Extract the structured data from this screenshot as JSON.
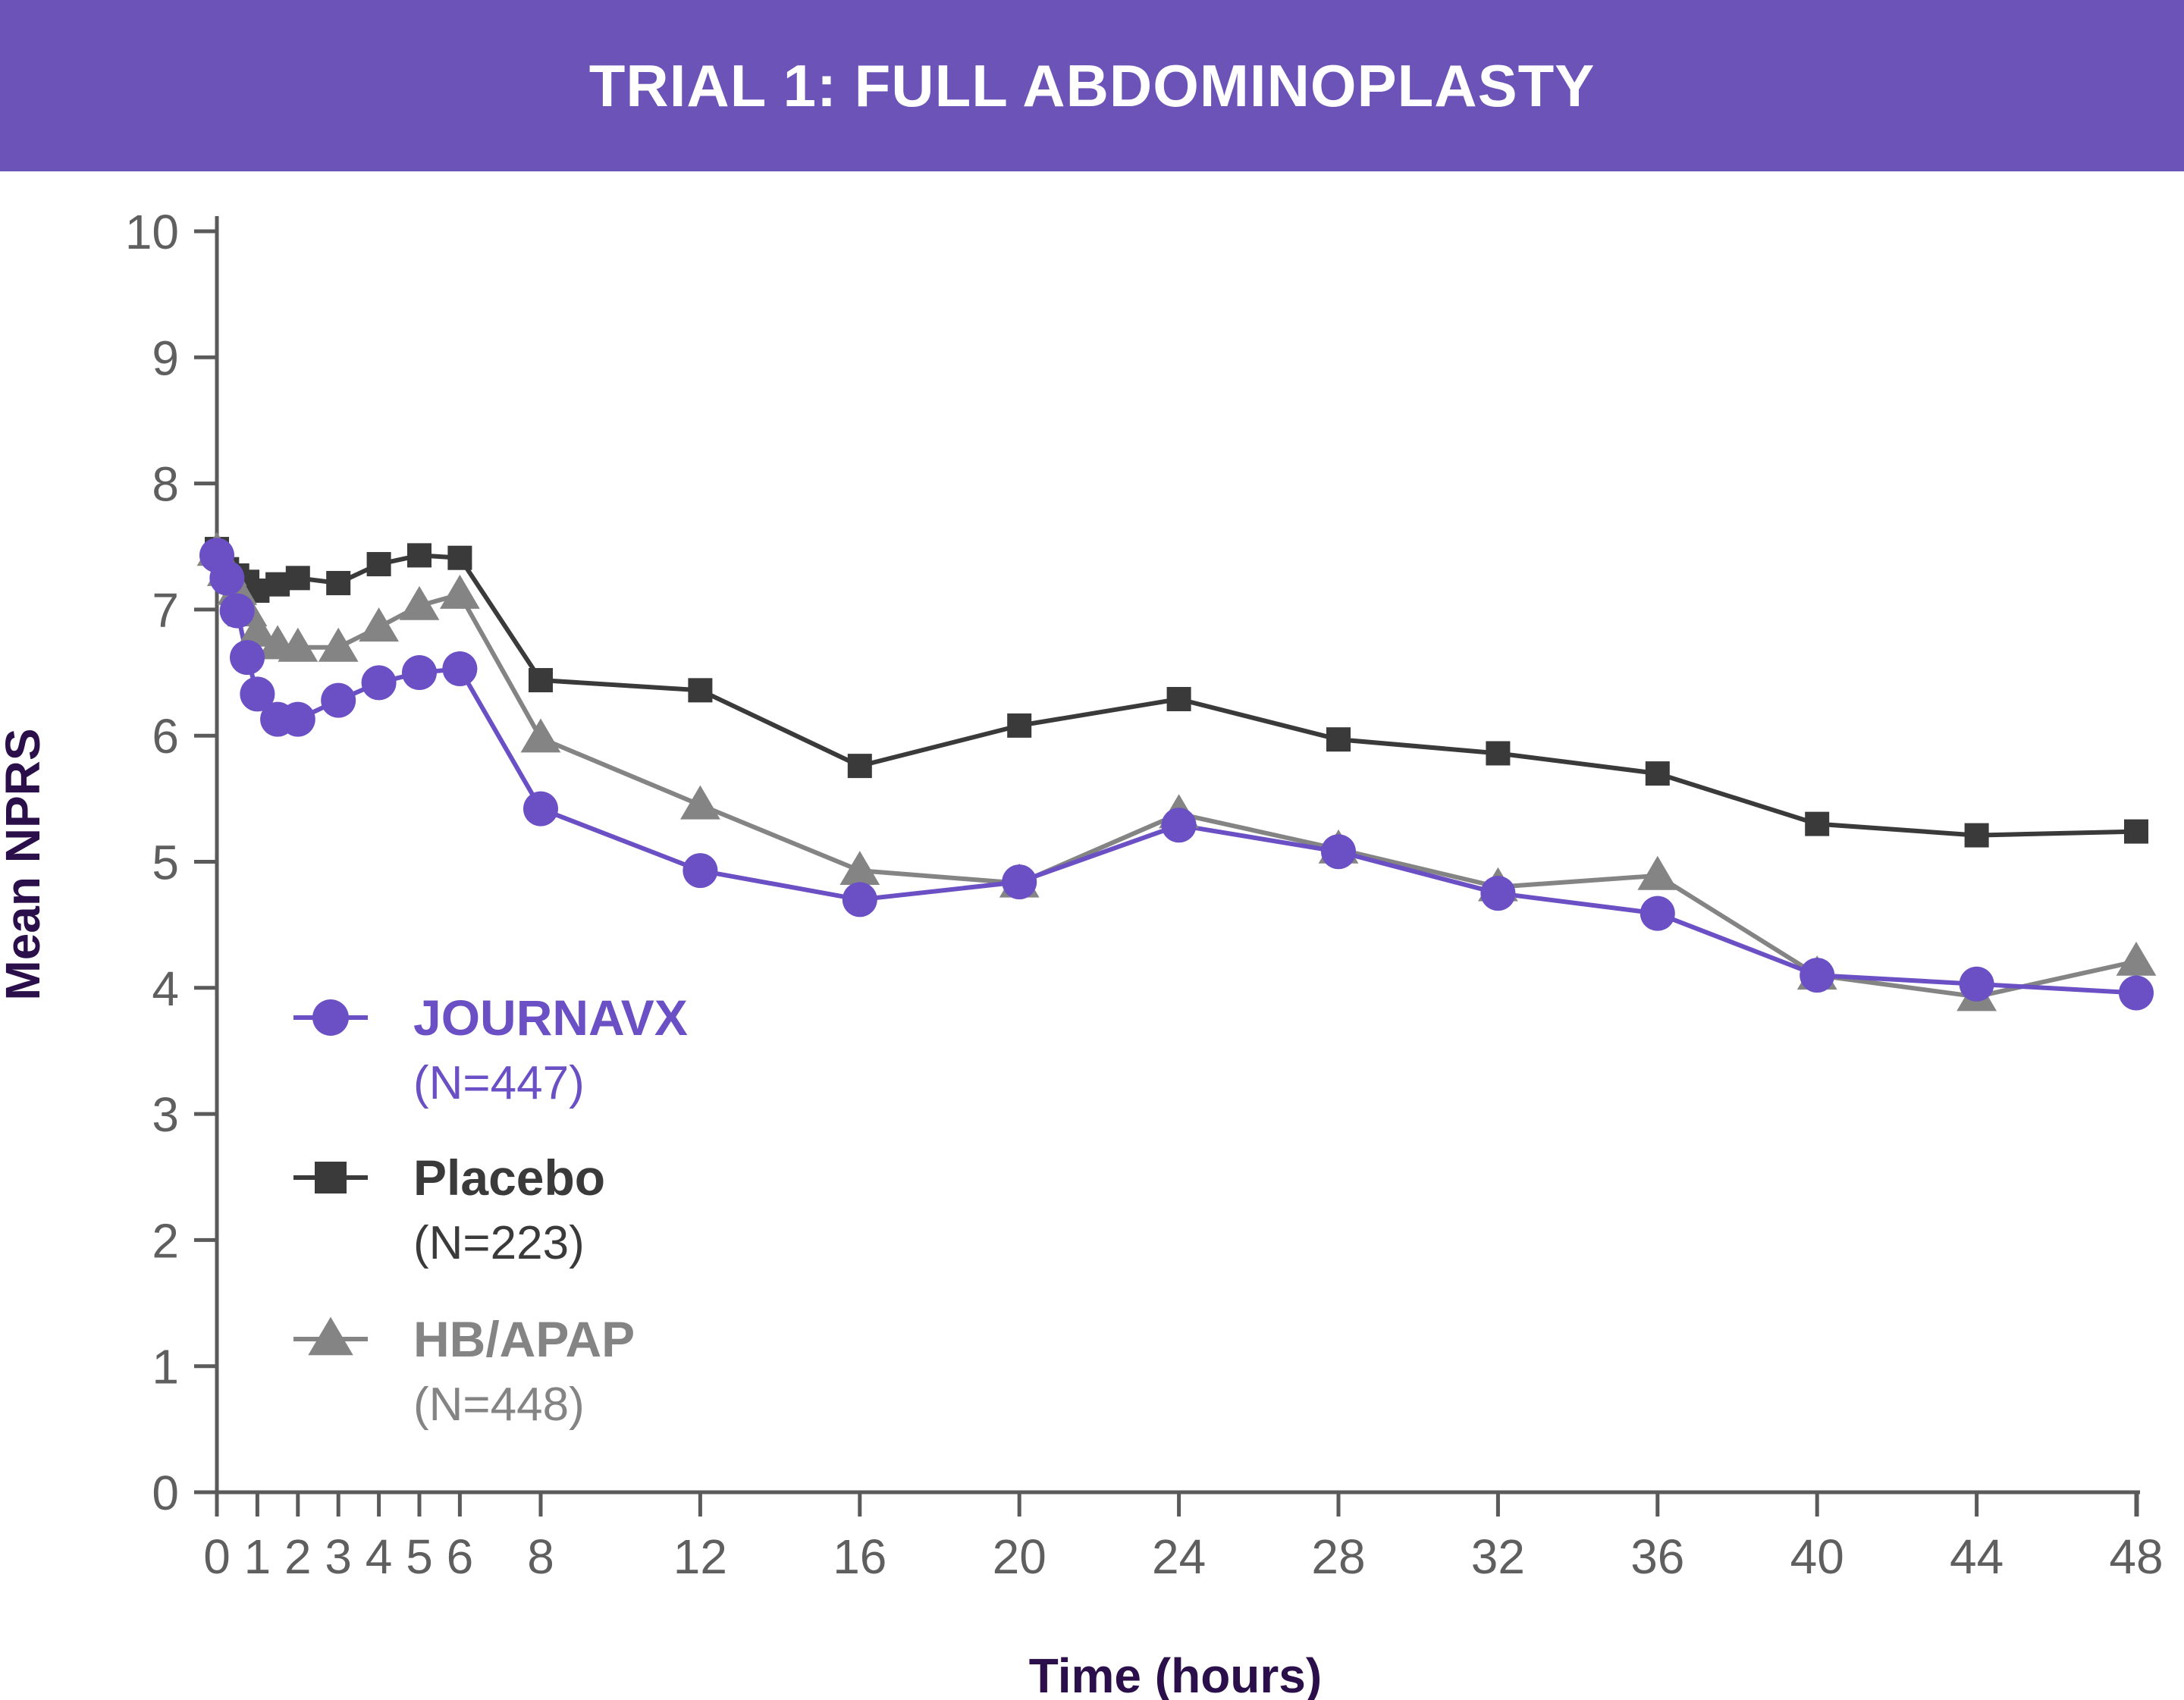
{
  "banner": {
    "title": "TRIAL 1: FULL ABDOMINOPLASTY"
  },
  "chart_data": {
    "type": "line",
    "title": "TRIAL 1: FULL ABDOMINOPLASTY",
    "xlabel": "Time (hours)",
    "ylabel": "Mean NPRS",
    "xlim": [
      0,
      48
    ],
    "ylim": [
      0,
      10
    ],
    "x_ticks": [
      0,
      1,
      2,
      3,
      4,
      5,
      6,
      8,
      12,
      16,
      20,
      24,
      28,
      32,
      36,
      40,
      44,
      48
    ],
    "y_ticks": [
      0,
      1,
      2,
      3,
      4,
      5,
      6,
      7,
      8,
      9,
      10
    ],
    "grid": false,
    "legend_position": "lower-left",
    "series": [
      {
        "name": "JOURNAVX",
        "n_label": "(N=447)",
        "color": "#6b4fc4",
        "marker": "circle",
        "x": [
          0,
          0.25,
          0.5,
          0.75,
          1,
          1.5,
          2,
          3,
          4,
          5,
          6,
          8,
          12,
          16,
          20,
          24,
          28,
          32,
          36,
          40,
          44,
          48
        ],
        "values": [
          7.43,
          7.25,
          6.99,
          6.62,
          6.33,
          6.13,
          6.13,
          6.28,
          6.42,
          6.5,
          6.53,
          5.42,
          4.93,
          4.7,
          4.84,
          5.29,
          5.08,
          4.75,
          4.59,
          4.1,
          4.03,
          3.96
        ]
      },
      {
        "name": "Placebo",
        "n_label": "(N=223)",
        "color": "#3a3a3a",
        "marker": "square",
        "x": [
          0,
          0.25,
          0.5,
          0.75,
          1,
          1.5,
          2,
          3,
          4,
          5,
          6,
          8,
          12,
          16,
          20,
          24,
          28,
          32,
          36,
          40,
          44,
          48
        ],
        "values": [
          7.48,
          7.32,
          7.27,
          7.22,
          7.15,
          7.2,
          7.25,
          7.21,
          7.36,
          7.43,
          7.41,
          6.44,
          6.36,
          5.76,
          6.08,
          6.29,
          5.97,
          5.86,
          5.7,
          5.3,
          5.21,
          5.24
        ]
      },
      {
        "name": "HB/APAP",
        "n_label": "(N=448)",
        "color": "#848484",
        "marker": "triangle",
        "x": [
          0,
          0.25,
          0.5,
          0.75,
          1,
          1.5,
          2,
          3,
          4,
          5,
          6,
          8,
          12,
          16,
          20,
          24,
          28,
          32,
          36,
          40,
          44,
          48
        ],
        "values": [
          7.46,
          7.3,
          7.15,
          6.98,
          6.82,
          6.72,
          6.7,
          6.7,
          6.86,
          7.03,
          7.12,
          5.98,
          5.45,
          4.93,
          4.83,
          5.38,
          5.1,
          4.8,
          4.89,
          4.1,
          3.93,
          4.21
        ]
      }
    ]
  }
}
